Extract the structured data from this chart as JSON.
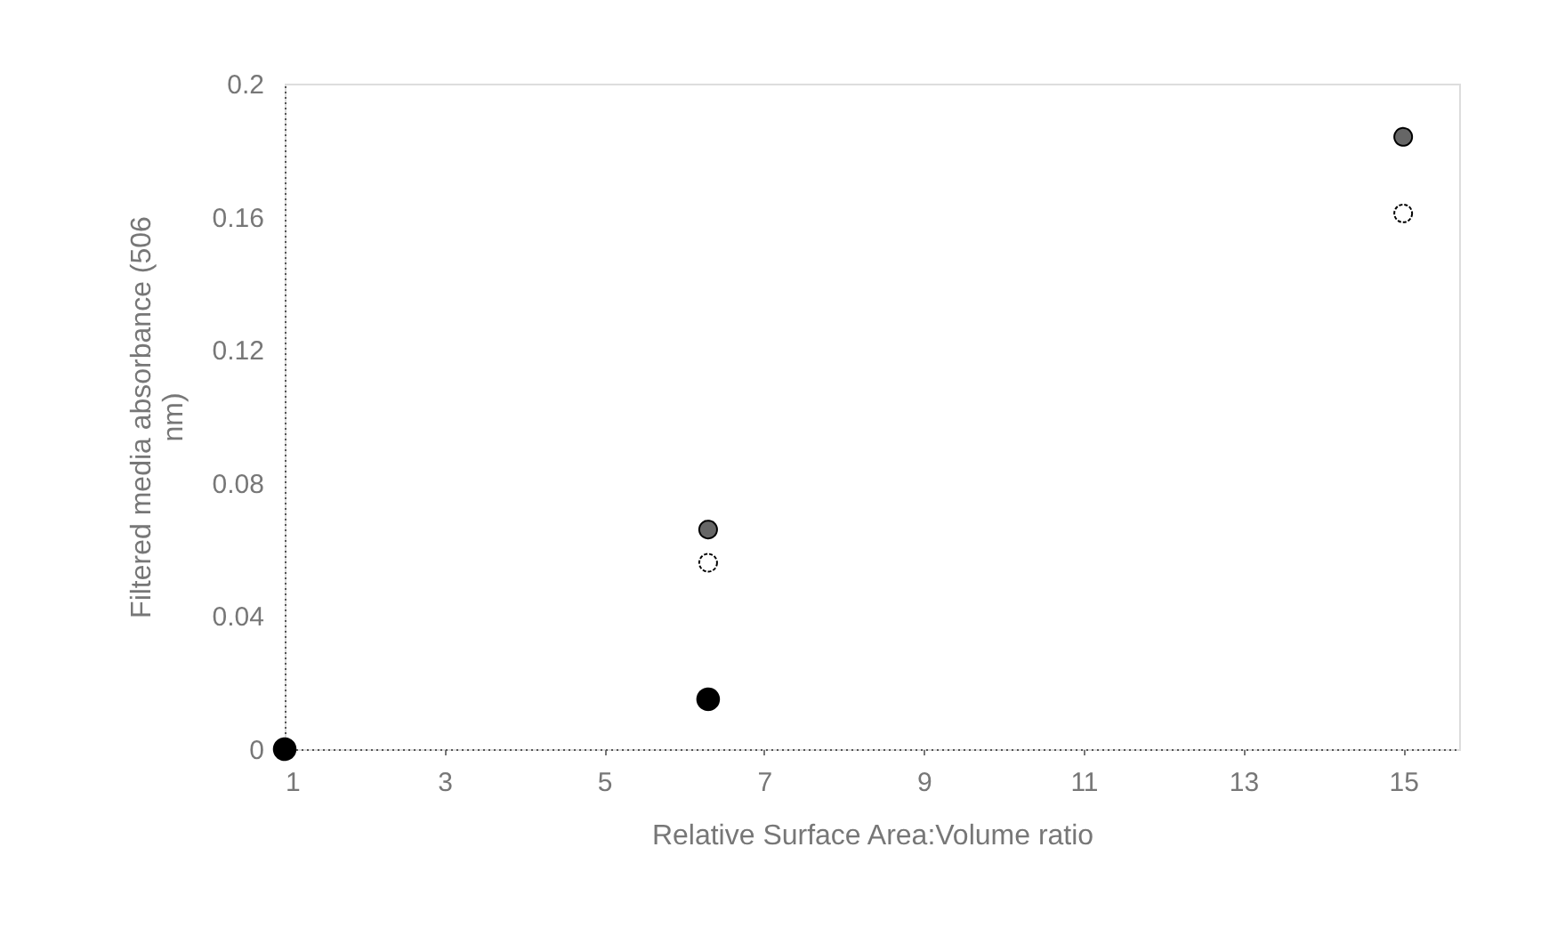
{
  "chart_data": {
    "type": "scatter",
    "xlabel": "Relative Surface Area:Volume ratio",
    "ylabel": "Filtered media absorbance (506 nm)",
    "xlim": [
      1,
      15.7
    ],
    "xticks": [
      1,
      3,
      5,
      7,
      9,
      11,
      13,
      15
    ],
    "ylim": [
      0,
      0.2
    ],
    "yticks": [
      0,
      0.04,
      0.08,
      0.12,
      0.16,
      0.2
    ],
    "grid": false,
    "marker": "circle",
    "series": [
      {
        "color": "#000000",
        "x": [
          1,
          6.3
        ],
        "values": [
          0,
          0.015
        ]
      },
      {
        "color": "#666666",
        "x": [
          6.3,
          15
        ],
        "values": [
          0.066,
          0.184
        ]
      },
      {
        "color": "#ffffff",
        "x": [
          6.3,
          15
        ],
        "values": [
          0.056,
          0.161
        ]
      }
    ]
  }
}
